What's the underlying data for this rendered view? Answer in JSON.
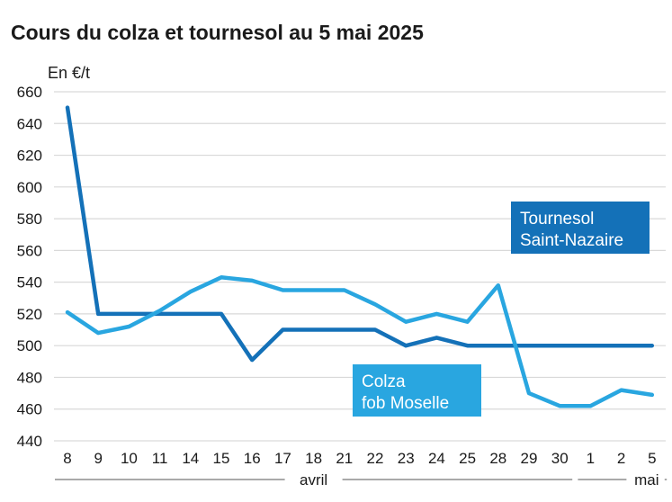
{
  "chart_data": {
    "type": "line",
    "title": "Cours du colza et tournesol au 5 mai 2025",
    "ylabel": "En €/t",
    "xlabel": "",
    "ylim": [
      440,
      660
    ],
    "yticks": [
      440,
      460,
      480,
      500,
      520,
      540,
      560,
      580,
      600,
      620,
      640,
      660
    ],
    "categories": [
      "8",
      "9",
      "10",
      "11",
      "14",
      "15",
      "16",
      "17",
      "18",
      "21",
      "22",
      "23",
      "24",
      "25",
      "28",
      "29",
      "30",
      "1",
      "2",
      "5"
    ],
    "month_groups": [
      {
        "label": "avril",
        "from": 0,
        "to": 16
      },
      {
        "label": "mai",
        "from": 17,
        "to": 19
      }
    ],
    "grid": true,
    "series": [
      {
        "name": "Tournesol Saint-Nazaire",
        "label_lines": [
          "Tournesol",
          "Saint-Nazaire"
        ],
        "color": "#1471b8",
        "values": [
          650,
          520,
          520,
          520,
          520,
          520,
          491,
          510,
          510,
          510,
          510,
          500,
          505,
          500,
          500,
          500,
          500,
          500,
          500,
          500
        ]
      },
      {
        "name": "Colza fob Moselle",
        "label_lines": [
          "Colza",
          "fob Moselle"
        ],
        "color": "#29a6e0",
        "values": [
          521,
          508,
          512,
          522,
          534,
          543,
          541,
          535,
          535,
          535,
          526,
          515,
          520,
          515,
          538,
          470,
          462,
          462,
          472,
          469
        ]
      }
    ]
  }
}
